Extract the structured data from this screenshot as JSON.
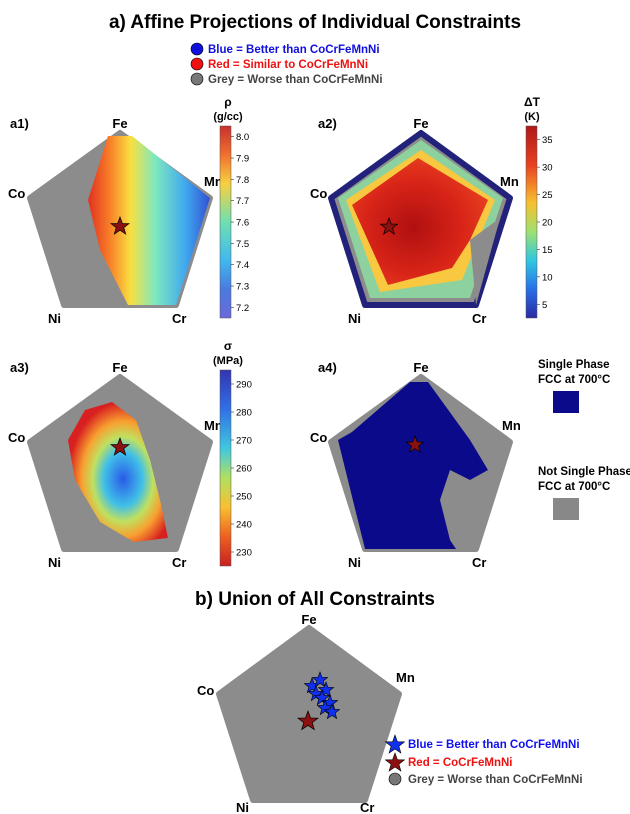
{
  "section_a": {
    "title": "a) Affine Projections of Individual Constraints",
    "legend": [
      {
        "text": "Blue = Better than CoCrFeMnNi",
        "color": "#1010dd",
        "marker": "circle"
      },
      {
        "text": "Red = Similar to CoCrFeMnNi",
        "color": "#ee1111",
        "marker": "circle"
      },
      {
        "text": "Grey = Worse than CoCrFeMnNi",
        "color": "#555555",
        "marker": "circle"
      }
    ]
  },
  "vertices": [
    "Fe",
    "Mn",
    "Cr",
    "Ni",
    "Co"
  ],
  "panels": [
    {
      "label": "a1)",
      "colorbar": {
        "title": "ρ",
        "unit": "(g/cc)",
        "ticks": [
          "8.0",
          "7.9",
          "7.8",
          "7.7",
          "7.6",
          "7.5",
          "7.4",
          "7.3",
          "7.2"
        ],
        "colormap": "jet-reversed"
      }
    },
    {
      "label": "a2)",
      "colorbar": {
        "title": "ΔT",
        "unit": "(K)",
        "ticks": [
          "35",
          "30",
          "25",
          "20",
          "15",
          "10",
          "5"
        ],
        "colormap": "jet"
      }
    },
    {
      "label": "a3)",
      "colorbar": {
        "title": "σ",
        "unit": "(MPa)",
        "ticks": [
          "290",
          "280",
          "270",
          "260",
          "250",
          "240",
          "230"
        ],
        "colormap": "jet"
      }
    },
    {
      "label": "a4)",
      "legend": [
        {
          "line1": "Single Phase",
          "line2": "FCC at 700°C",
          "color": "#0a0a8a"
        },
        {
          "line1": "Not Single Phase",
          "line2": "FCC at 700°C",
          "color": "#888888"
        }
      ]
    }
  ],
  "section_b": {
    "title": "b) Union of All Constraints",
    "legend": [
      {
        "text": "Blue = Better than CoCrFeMnNi",
        "color": "#1010ee",
        "marker": "star"
      },
      {
        "text": "Red = CoCrFeMnNi",
        "color": "#ee1111",
        "marker": "star"
      },
      {
        "text": "Grey = Worse than CoCrFeMnNi",
        "color": "#555555",
        "marker": "circle"
      }
    ]
  },
  "colors": {
    "grey_region": "#8c8c8c",
    "star_red": "#8b1010",
    "star_blue": "#1030ee",
    "single_phase": "#0a0a8a"
  }
}
